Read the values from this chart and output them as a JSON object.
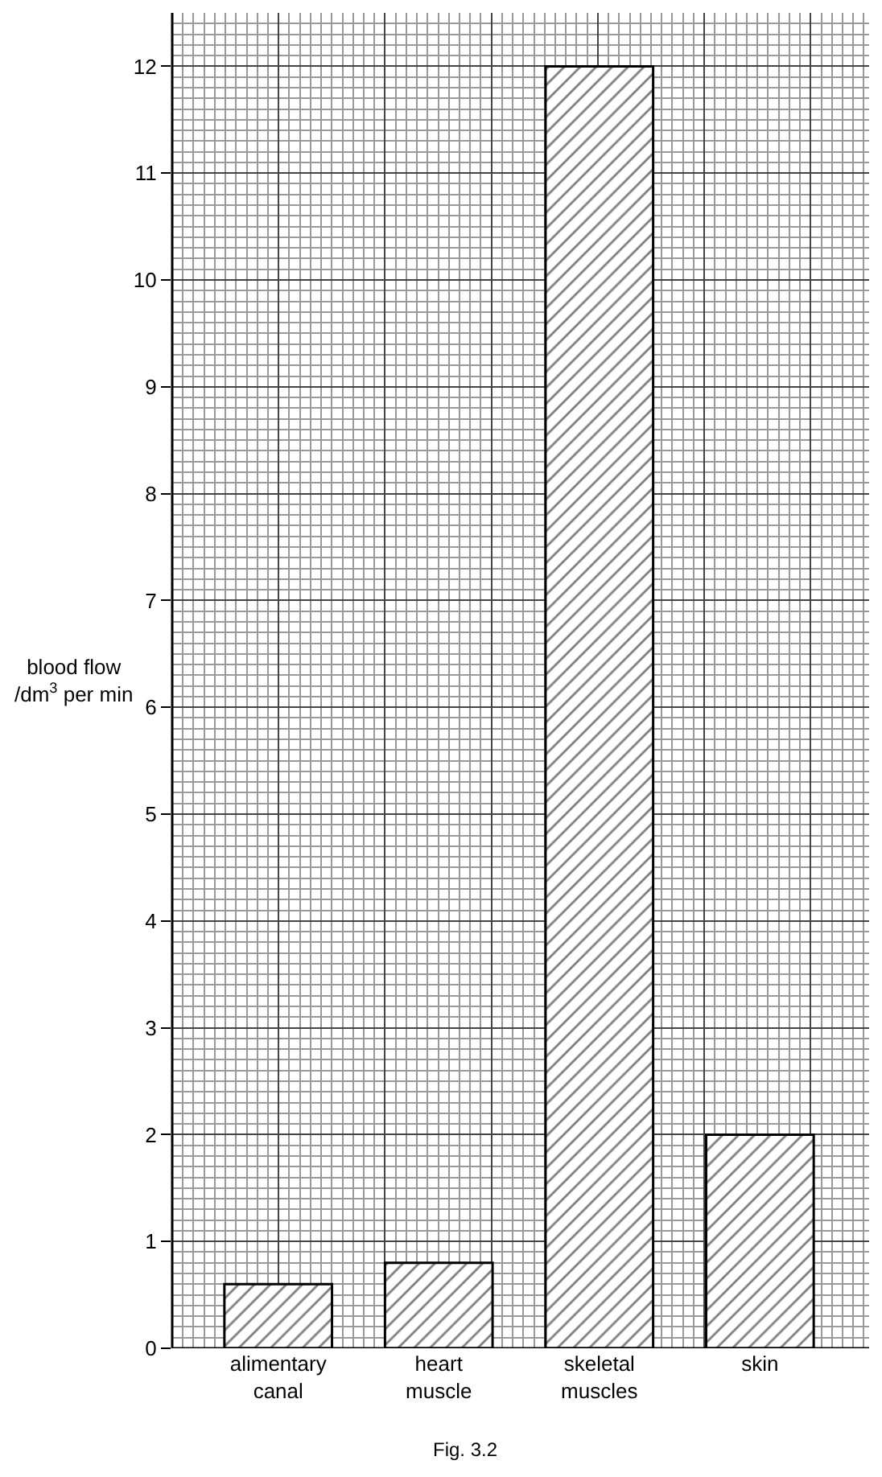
{
  "chart_data": {
    "type": "bar",
    "categories": [
      "alimentary\ncanal",
      "heart\nmuscle",
      "skeletal\nmuscles",
      "skin"
    ],
    "values": [
      0.6,
      0.8,
      12,
      2
    ],
    "color": "#000000",
    "ylabel": "blood flow\n/dm$^{3}$ per min",
    "ylim": [
      0,
      12.5
    ],
    "yticks": [
      0,
      1,
      2,
      3,
      4,
      5,
      6,
      7,
      8,
      9,
      10,
      11,
      12
    ],
    "grid": true,
    "annotations": [
      "Fig. 3.2"
    ]
  }
}
